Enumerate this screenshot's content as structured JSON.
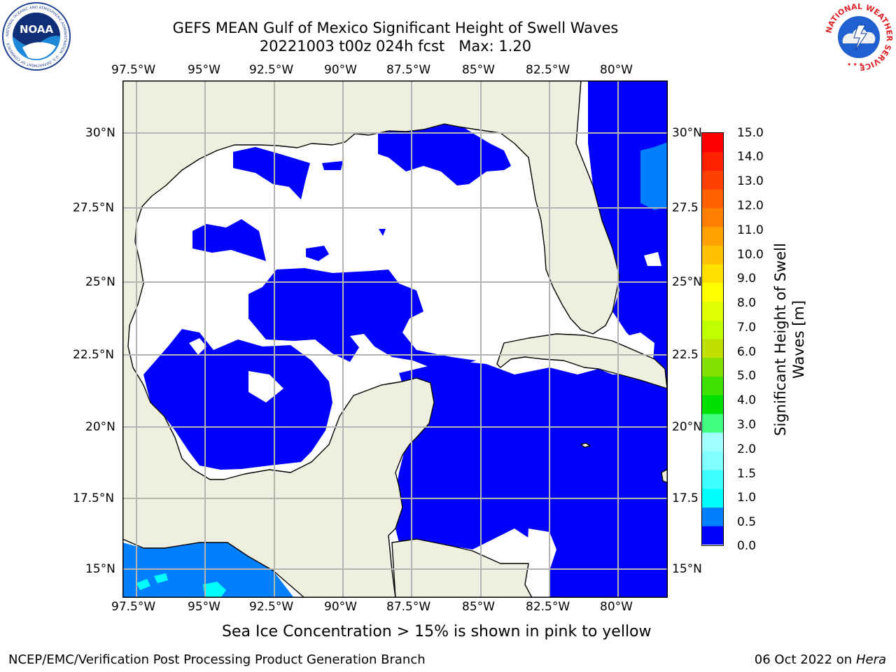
{
  "header": {
    "title_line1": "GEFS MEAN Gulf of Mexico Significant Height of Swell Waves",
    "title_line2": "20221003 t00z 024h fcst   Max: 1.20",
    "left_logo_text": "NOAA",
    "left_logo_ring": "NATIONAL OCEANIC AND ATMOSPHERIC ADMINISTRATION · U.S. DEPARTMENT OF COMMERCE ·",
    "right_logo_ring": "NATIONAL WEATHER SERVICE"
  },
  "map": {
    "lon_labels": [
      "97.5°W",
      "95°W",
      "92.5°W",
      "90°W",
      "87.5°W",
      "85°W",
      "82.5°W",
      "80°W"
    ],
    "lat_labels_left": [
      "30°N",
      "27.5°N",
      "25°N",
      "22.5°N",
      "20°N",
      "17.5°N",
      "15°N"
    ],
    "lat_labels_right": [
      "30°N",
      "27.5",
      "25°N",
      "22.5",
      "20°N",
      "17.5",
      "15°N"
    ],
    "colors": {
      "land": "#efefdf",
      "ocean_below_threshold": "#ffffff",
      "swell_0_0p5": "#0000ff",
      "swell_0p5_1p0": "#0080ff",
      "swell_1p0_1p5": "#00ffff",
      "grid": "#b4b4b4",
      "coast": "#000000"
    }
  },
  "colorbar": {
    "title_line1": "Significant Height of Swell",
    "title_line2": "Waves [m]",
    "tick_labels": [
      "15.0",
      "14.0",
      "13.0",
      "12.0",
      "11.0",
      "10.0",
      "9.0",
      "8.0",
      "7.0",
      "6.0",
      "5.0",
      "4.0",
      "3.0",
      "2.0",
      "1.5",
      "1.0",
      "0.5",
      "0.0"
    ],
    "level_colors": [
      "#0000ff",
      "#0080ff",
      "#00ffff",
      "#40ffff",
      "#80ffff",
      "#a0ffff",
      "#40ff80",
      "#00e000",
      "#40e000",
      "#80e000",
      "#c0e000",
      "#c0ff00",
      "#e0ff00",
      "#ffff00",
      "#ffe000",
      "#ffc000",
      "#ffa000",
      "#ff8000",
      "#ff6000",
      "#ff4000",
      "#ff2000",
      "#ff0000"
    ]
  },
  "footer": {
    "note": "Sea Ice Concentration > 15% is shown in pink to yellow",
    "credit": "NCEP/EMC/Verification Post Processing Product Generation Branch",
    "date": "06 Oct 2022 on ",
    "host": "Hera"
  }
}
